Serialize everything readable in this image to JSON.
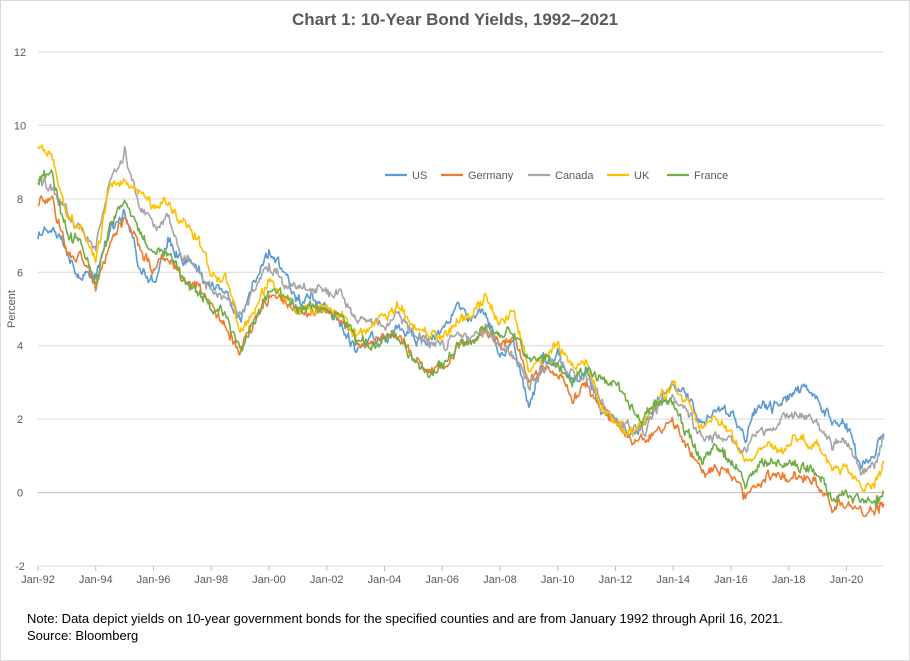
{
  "chart_data": {
    "type": "line",
    "title": "Chart 1: 10-Year Bond Yields, 1992–2021",
    "xlabel": "",
    "ylabel": "Percent",
    "ylim": [
      -2,
      12
    ],
    "y_ticks": [
      -2,
      0,
      2,
      4,
      6,
      8,
      10,
      12
    ],
    "x_tick_labels": [
      "Jan-92",
      "Jan-94",
      "Jan-96",
      "Jan-98",
      "Jan-00",
      "Jan-02",
      "Jan-04",
      "Jan-06",
      "Jan-08",
      "Jan-10",
      "Jan-12",
      "Jan-14",
      "Jan-16",
      "Jan-18",
      "Jan-20"
    ],
    "x_range": [
      1992.0,
      2021.3
    ],
    "grid": "horizontal",
    "legend_position": "top-center",
    "x": [
      1992.0,
      1992.5,
      1993.0,
      1993.5,
      1994.0,
      1994.5,
      1995.0,
      1995.5,
      1996.0,
      1996.5,
      1997.0,
      1997.5,
      1998.0,
      1998.5,
      1999.0,
      1999.5,
      2000.0,
      2000.5,
      2001.0,
      2001.5,
      2002.0,
      2002.5,
      2003.0,
      2003.5,
      2004.0,
      2004.5,
      2005.0,
      2005.5,
      2006.0,
      2006.5,
      2007.0,
      2007.5,
      2008.0,
      2008.5,
      2009.0,
      2009.5,
      2010.0,
      2010.5,
      2011.0,
      2011.5,
      2012.0,
      2012.5,
      2013.0,
      2013.5,
      2014.0,
      2014.5,
      2015.0,
      2015.5,
      2016.0,
      2016.5,
      2017.0,
      2017.5,
      2018.0,
      2018.5,
      2019.0,
      2019.5,
      2020.0,
      2020.5,
      2021.0,
      2021.29
    ],
    "series": [
      {
        "name": "US",
        "color": "#5B9BD5",
        "values": [
          7.0,
          7.3,
          6.6,
          5.8,
          5.8,
          7.2,
          7.6,
          6.2,
          5.7,
          6.8,
          6.4,
          6.1,
          5.6,
          5.4,
          4.7,
          5.7,
          6.6,
          6.0,
          5.2,
          5.3,
          5.0,
          4.6,
          3.9,
          4.2,
          4.2,
          4.6,
          4.2,
          4.1,
          4.4,
          5.1,
          4.7,
          5.0,
          3.7,
          4.0,
          2.4,
          3.6,
          3.8,
          3.0,
          3.4,
          2.1,
          2.0,
          1.6,
          1.9,
          2.6,
          2.9,
          2.6,
          1.8,
          2.2,
          2.2,
          1.5,
          2.4,
          2.3,
          2.6,
          2.9,
          2.6,
          2.0,
          1.8,
          0.7,
          1.1,
          1.6
        ]
      },
      {
        "name": "Germany",
        "color": "#ED7D31",
        "values": [
          7.9,
          8.0,
          6.5,
          6.5,
          5.6,
          6.8,
          7.5,
          6.8,
          6.0,
          6.4,
          5.8,
          5.7,
          5.1,
          4.6,
          3.8,
          4.7,
          5.4,
          5.2,
          5.0,
          5.0,
          5.0,
          4.7,
          4.2,
          4.1,
          4.3,
          4.2,
          3.6,
          3.3,
          3.4,
          4.0,
          4.1,
          4.5,
          4.0,
          4.3,
          3.0,
          3.4,
          3.3,
          2.6,
          3.0,
          2.3,
          1.8,
          1.4,
          1.4,
          1.7,
          1.9,
          1.2,
          0.5,
          0.6,
          0.6,
          -0.1,
          0.3,
          0.5,
          0.5,
          0.4,
          0.2,
          -0.4,
          -0.3,
          -0.5,
          -0.5,
          -0.3
        ]
      },
      {
        "name": "Canada",
        "color": "#A5A5A5",
        "values": [
          8.6,
          8.3,
          7.6,
          7.2,
          6.6,
          8.7,
          9.3,
          7.8,
          7.2,
          7.6,
          6.4,
          6.1,
          5.5,
          5.3,
          4.9,
          5.5,
          6.2,
          5.8,
          5.5,
          5.6,
          5.4,
          5.4,
          4.7,
          4.7,
          4.6,
          4.8,
          4.3,
          4.1,
          4.0,
          4.3,
          4.1,
          4.5,
          3.9,
          3.7,
          2.9,
          3.4,
          3.6,
          3.2,
          3.2,
          2.5,
          2.0,
          1.8,
          1.7,
          2.4,
          2.5,
          2.2,
          1.5,
          1.5,
          1.3,
          1.1,
          1.7,
          1.8,
          2.1,
          2.2,
          1.9,
          1.3,
          1.5,
          0.5,
          0.8,
          1.5
        ]
      },
      {
        "name": "UK",
        "color": "#FFC000",
        "values": [
          9.5,
          9.2,
          7.5,
          7.2,
          6.4,
          8.3,
          8.5,
          8.2,
          7.8,
          7.9,
          7.4,
          6.9,
          6.0,
          5.8,
          4.4,
          5.0,
          5.8,
          5.3,
          5.0,
          5.0,
          5.0,
          4.8,
          4.3,
          4.5,
          4.8,
          5.1,
          4.5,
          4.3,
          4.2,
          4.6,
          4.8,
          5.3,
          4.6,
          4.9,
          3.3,
          3.7,
          4.0,
          3.4,
          3.6,
          2.3,
          2.0,
          1.6,
          1.9,
          2.5,
          2.9,
          2.5,
          1.7,
          2.0,
          1.7,
          0.8,
          1.2,
          1.1,
          1.3,
          1.4,
          1.3,
          0.6,
          0.6,
          0.2,
          0.3,
          0.8
        ]
      },
      {
        "name": "France",
        "color": "#70AD47",
        "values": [
          8.5,
          8.7,
          7.0,
          6.8,
          5.7,
          7.2,
          8.0,
          7.1,
          6.5,
          6.5,
          5.8,
          5.6,
          5.1,
          4.8,
          3.9,
          4.6,
          5.5,
          5.3,
          5.0,
          5.1,
          5.0,
          4.8,
          4.1,
          4.0,
          4.2,
          4.2,
          3.6,
          3.2,
          3.5,
          4.0,
          4.1,
          4.5,
          4.2,
          4.4,
          3.6,
          3.6,
          3.5,
          3.0,
          3.4,
          3.1,
          3.0,
          2.3,
          2.0,
          2.4,
          2.4,
          1.6,
          0.8,
          1.2,
          0.9,
          0.3,
          0.8,
          0.8,
          0.8,
          0.7,
          0.6,
          -0.2,
          0.0,
          -0.2,
          -0.3,
          0.0
        ]
      }
    ]
  },
  "note": {
    "line1": "Note: Data depict yields on 10-year government bonds for the specified counties and are from January 1992 through April 16, 2021.",
    "line2": "Source: Bloomberg"
  }
}
